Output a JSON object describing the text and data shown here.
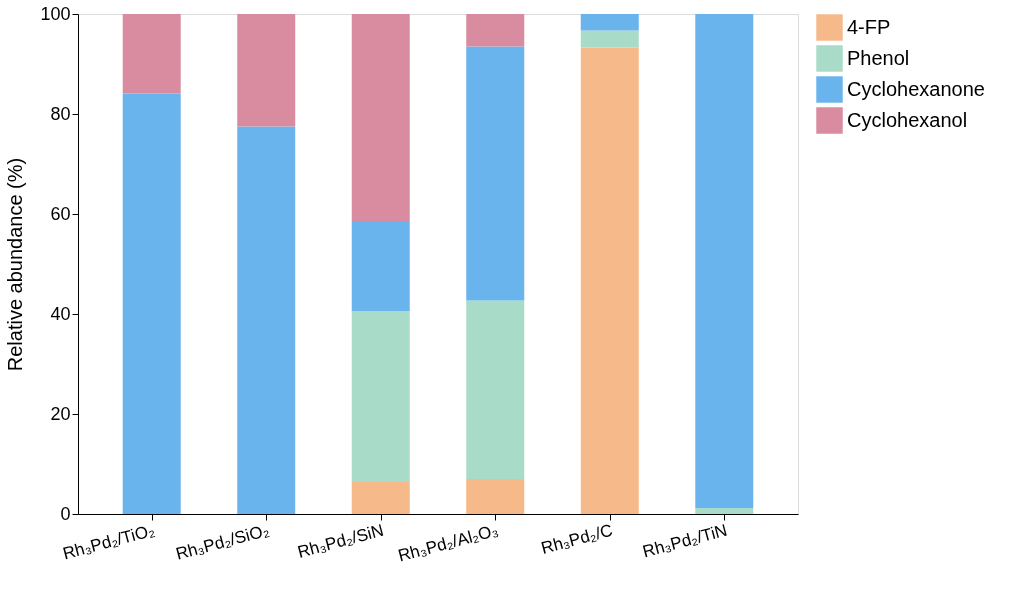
{
  "chart_data": {
    "type": "bar",
    "stacked": true,
    "ylabel": "Relative abundance (%)",
    "categories": [
      "Rh₃Pd₂/TiO₂",
      "Rh₃Pd₂/SiO₂",
      "Rh₃Pd₂/SiN",
      "Rh₃Pd₂/Al₂O₃",
      "Rh₃Pd₂/C",
      "Rh₃Pd₂/TiN"
    ],
    "series": [
      {
        "name": "4-FP",
        "color": "#f5b98a",
        "values": [
          null,
          null,
          6.4,
          7.0,
          93.3,
          null
        ]
      },
      {
        "name": "Phenol",
        "color": "#a8dcc8",
        "values": [
          null,
          null,
          34.2,
          35.7,
          3.4,
          1.2
        ]
      },
      {
        "name": "Cyclohexanone",
        "color": "#6ab4ee",
        "values": [
          84.1,
          77.5,
          18.0,
          50.8,
          3.3,
          98.8
        ]
      },
      {
        "name": "Cyclohexanol",
        "color": "#d98ca0",
        "values": [
          15.9,
          22.5,
          41.4,
          6.5,
          null,
          null
        ]
      }
    ],
    "ylim": [
      0,
      100
    ],
    "yticks": [
      0,
      20,
      40,
      60,
      80,
      100
    ],
    "grid": false,
    "legend": "top right"
  }
}
